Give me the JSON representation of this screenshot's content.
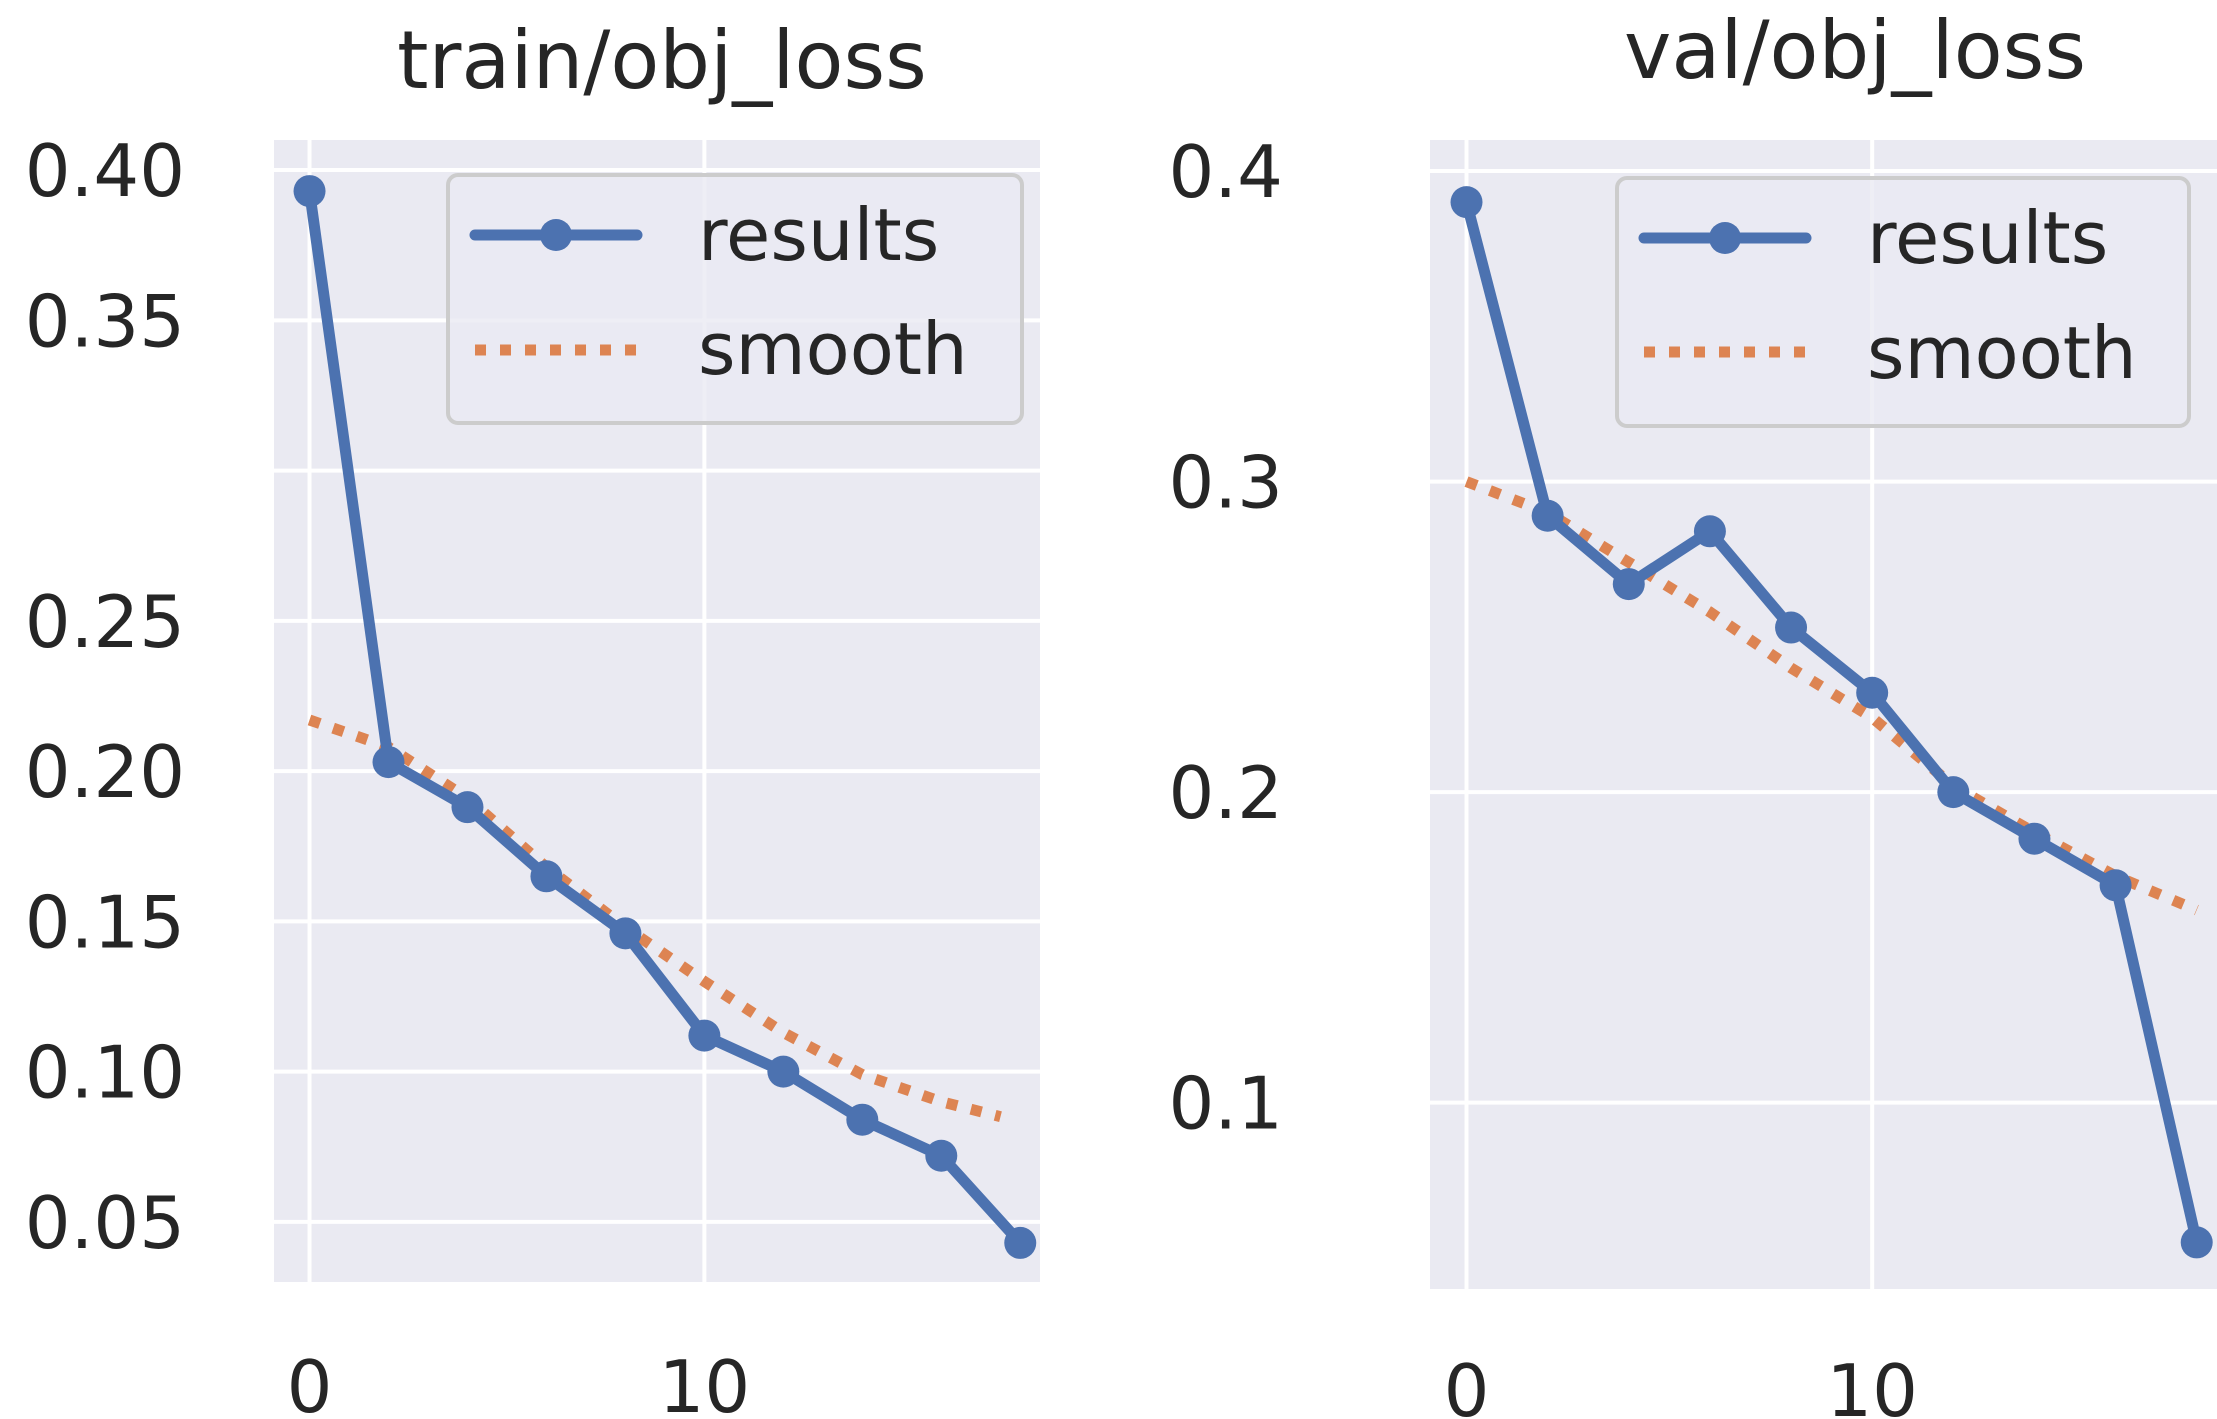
{
  "chart_data": [
    {
      "type": "line",
      "title": "train/obj_loss",
      "xlabel": "",
      "ylabel": "",
      "xlim": [
        -0.9,
        18.5
      ],
      "ylim": [
        0.03,
        0.41
      ],
      "xticks": [
        0,
        10
      ],
      "xtick_labels": [
        "0",
        "10"
      ],
      "yticks": [
        0.4,
        0.35,
        0.25,
        0.2,
        0.15,
        0.1,
        0.05
      ],
      "ytick_labels": [
        "0.40",
        "0.35",
        "0.25",
        "0.20",
        "0.15",
        "0.10",
        "0.05"
      ],
      "ygrid_values": [
        0.4,
        0.35,
        0.3,
        0.25,
        0.2,
        0.15,
        0.1,
        0.05
      ],
      "grid": true,
      "legend": {
        "position": "top-right",
        "entries": [
          "results",
          "smooth"
        ]
      },
      "series": [
        {
          "name": "results",
          "style": "line-marker",
          "color": "#4c72b0",
          "x": [
            0,
            2,
            4,
            6,
            8,
            10,
            12,
            14,
            16,
            18
          ],
          "y": [
            0.393,
            0.203,
            0.188,
            0.165,
            0.146,
            0.112,
            0.1,
            0.084,
            0.072,
            0.043
          ]
        },
        {
          "name": "smooth",
          "style": "dotted",
          "color": "#dd8452",
          "x": [
            0,
            2,
            4,
            6,
            8,
            10,
            12,
            14,
            16,
            17.5
          ],
          "y": [
            0.217,
            0.208,
            0.191,
            0.168,
            0.148,
            0.13,
            0.113,
            0.099,
            0.09,
            0.085
          ]
        }
      ]
    },
    {
      "type": "line",
      "title": "val/obj_loss",
      "xlabel": "",
      "ylabel": "",
      "xlim": [
        -0.9,
        18.5
      ],
      "ylim": [
        0.04,
        0.41
      ],
      "xticks": [
        0,
        10
      ],
      "xtick_labels": [
        "0",
        "10"
      ],
      "yticks": [
        0.4,
        0.3,
        0.2,
        0.1
      ],
      "ytick_labels": [
        "0.4",
        "0.3",
        "0.2",
        "0.1"
      ],
      "ygrid_values": [
        0.4,
        0.3,
        0.2,
        0.1
      ],
      "grid": true,
      "legend": {
        "position": "top-right",
        "entries": [
          "results",
          "smooth"
        ]
      },
      "series": [
        {
          "name": "results",
          "style": "line-marker",
          "color": "#4c72b0",
          "x": [
            0,
            2,
            4,
            6,
            8,
            10,
            12,
            14,
            16,
            18
          ],
          "y": [
            0.39,
            0.289,
            0.267,
            0.284,
            0.253,
            0.232,
            0.2,
            0.185,
            0.17,
            0.055
          ]
        },
        {
          "name": "smooth",
          "style": "dotted",
          "color": "#dd8452",
          "x": [
            0,
            2,
            4,
            6,
            8,
            10,
            12,
            14,
            16,
            18
          ],
          "y": [
            0.3,
            0.29,
            0.274,
            0.258,
            0.24,
            0.224,
            0.202,
            0.187,
            0.173,
            0.162
          ]
        }
      ]
    }
  ]
}
